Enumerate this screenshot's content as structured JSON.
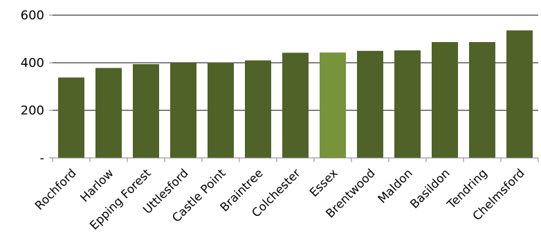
{
  "chart_data": {
    "type": "bar",
    "categories": [
      "Rochford",
      "Harlow",
      "Epping Forest",
      "Uttlesford",
      "Castle Point",
      "Braintree",
      "Colchester",
      "Essex",
      "Brentwood",
      "Maldon",
      "Basildon",
      "Tendring",
      "Chelmsford"
    ],
    "values": [
      338,
      378,
      394,
      400,
      401,
      410,
      442,
      443,
      450,
      452,
      487,
      487,
      536
    ],
    "highlight_category": "Essex",
    "yticks": [
      {
        "value": 0,
        "label": "-"
      },
      {
        "value": 200,
        "label": "200"
      },
      {
        "value": 400,
        "label": "400"
      },
      {
        "value": 600,
        "label": "600"
      }
    ],
    "ylim": [
      0,
      600
    ],
    "grid": true,
    "legend": "none",
    "colors": {
      "bar": "#4f6228",
      "highlight": "#77933c",
      "grid": "#000000",
      "axis": "#7f7f7f"
    }
  }
}
